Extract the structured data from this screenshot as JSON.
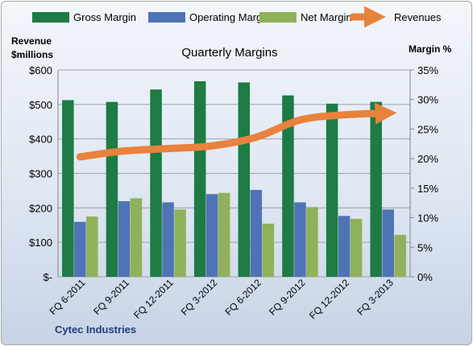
{
  "chart_data": {
    "type": "bar",
    "title": "Quarterly Margins",
    "footer": "Cytec Industries",
    "y_left_label": [
      "Revenue",
      "$millions"
    ],
    "y_right_label": "Margin %",
    "categories": [
      "FQ 6-2011",
      "FQ 9-2011",
      "FQ 12-2011",
      "FQ 3-2012",
      "FQ 6-2012",
      "FQ 9-2012",
      "FQ 12-2012",
      "FQ 3-2013"
    ],
    "y_left": {
      "min": 0,
      "max": 600,
      "ticks": [
        0,
        100,
        200,
        300,
        400,
        500,
        600
      ],
      "tick_labels": [
        "$-",
        "$100",
        "$200",
        "$300",
        "$400",
        "$500",
        "$600"
      ]
    },
    "y_right": {
      "min": 0,
      "max": 35,
      "ticks": [
        0,
        5,
        10,
        15,
        20,
        25,
        30,
        35
      ],
      "tick_labels": [
        "0%",
        "5%",
        "10%",
        "15%",
        "20%",
        "25%",
        "30%",
        "35%"
      ]
    },
    "grid": true,
    "legend_position": "top",
    "series": [
      {
        "name": "Gross Margin",
        "type": "bar",
        "axis": "right",
        "color": "#1e7b44",
        "values": [
          29.9,
          29.6,
          31.7,
          33.1,
          32.9,
          30.7,
          29.3,
          29.6
        ]
      },
      {
        "name": "Operating Margin",
        "type": "bar",
        "axis": "right",
        "color": "#4f74b5",
        "values": [
          9.3,
          12.8,
          12.6,
          14.0,
          14.7,
          12.6,
          10.3,
          11.4
        ]
      },
      {
        "name": "Net Margin",
        "type": "bar",
        "axis": "right",
        "color": "#8fb15a",
        "values": [
          10.2,
          13.3,
          11.4,
          14.2,
          9.0,
          11.8,
          9.8,
          7.1
        ]
      },
      {
        "name": "Revenues",
        "type": "line",
        "axis": "left",
        "color": "#e8823c",
        "values": [
          348,
          365,
          372,
          380,
          405,
          455,
          470,
          475
        ]
      }
    ]
  }
}
